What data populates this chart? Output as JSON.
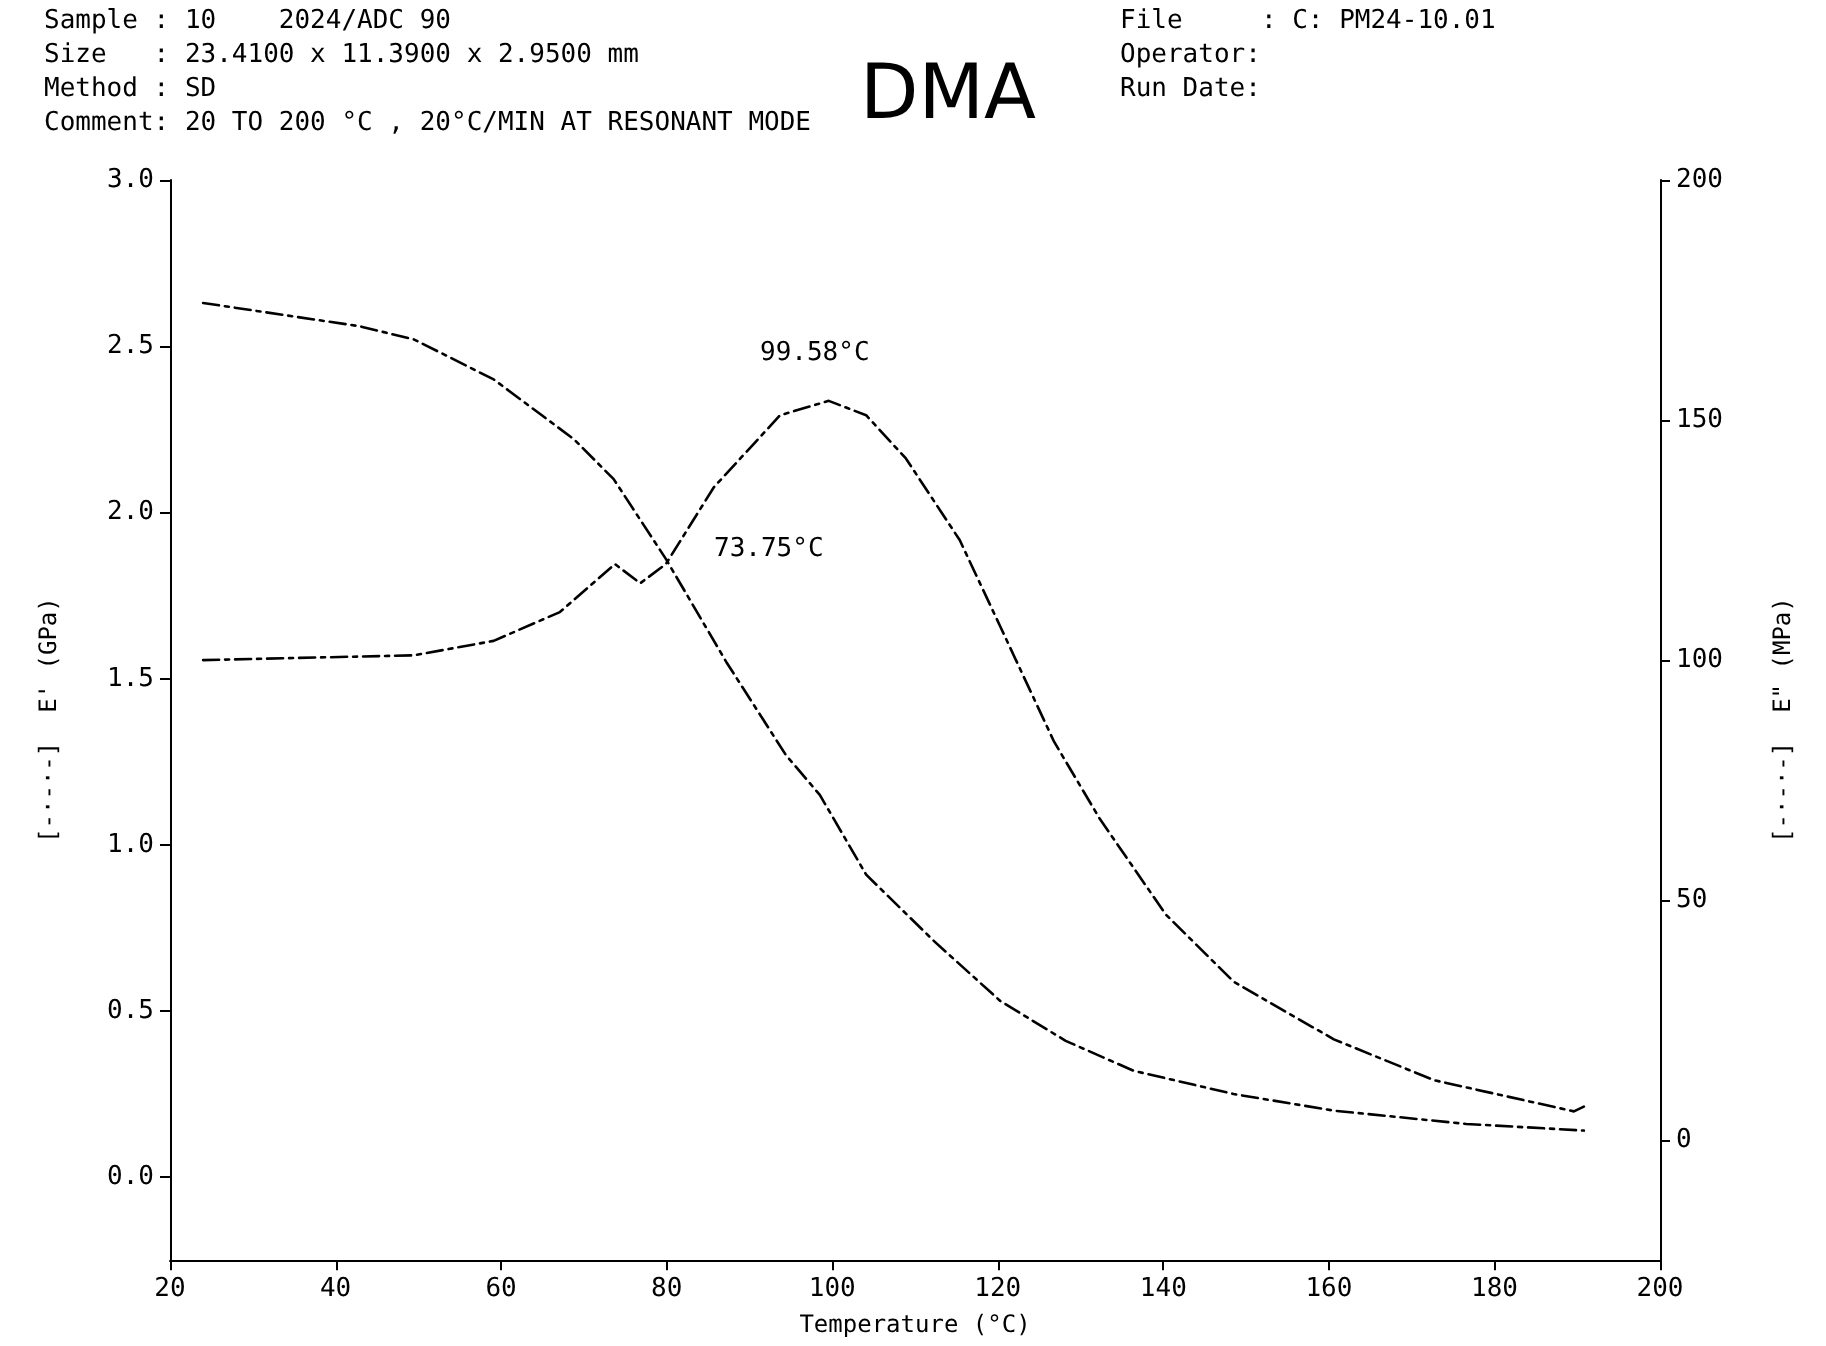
{
  "chart_data": {
    "type": "line",
    "title": "DMA",
    "annotations": [
      "Sample : 10    2024/ADC 90",
      "Size   : 23.4100 x 11.3900 x 2.9500 mm",
      "Method : SD",
      "Comment: 20 TO 200 °C , 20°C/MIN AT RESONANT MODE",
      "File     : C: PM24-10.01",
      "Operator:",
      "Run Date:",
      "99.58°C",
      "73.75°C"
    ],
    "xlabel": "Temperature (°C)",
    "ylabel": "[-·-·-]  E' (GPa)",
    "y2label": "[-·-·-]  E\" (MPa)",
    "series": [
      {
        "color": "#000000",
        "x": [
          24,
          42.9,
          49.5,
          59.1,
          68.8,
          73.6,
          79.9,
          87.2,
          94.4,
          98.5,
          104.1,
          112.3,
          120.3,
          128.2,
          136.4,
          148.5,
          160.6,
          176.6,
          190.8
        ],
        "values": [
          2.63,
          2.56,
          2.52,
          2.4,
          2.22,
          2.1,
          1.86,
          1.55,
          1.27,
          1.15,
          0.91,
          0.71,
          0.53,
          0.41,
          0.32,
          0.25,
          0.2,
          0.16,
          0.14
        ]
      },
      {
        "color": "#000000",
        "axis": "y2",
        "x": [
          24,
          49.5,
          59.1,
          67.1,
          73.75,
          76.8,
          79.9,
          85.7,
          93.7,
          99.58,
          104.1,
          108.9,
          115.4,
          120.3,
          126.8,
          132.3,
          140.3,
          148.5,
          160.6,
          172.7,
          189.6,
          190.8
        ],
        "values": [
          100,
          101,
          104,
          110,
          120,
          116,
          120,
          136,
          151,
          154,
          151,
          142,
          125,
          107,
          83,
          67,
          47,
          33,
          21,
          12.5,
          6,
          7
        ]
      }
    ],
    "xlim": [
      20,
      200
    ],
    "xticks": [
      20,
      40,
      60,
      80,
      100,
      120,
      140,
      160,
      180,
      200
    ],
    "ylim": [
      -0.25,
      3.0
    ],
    "yticks": [
      {
        "value": 0,
        "label": "0.0"
      },
      0.5,
      {
        "value": 1,
        "label": "1.0"
      },
      1.5,
      {
        "value": 2,
        "label": "2.0"
      },
      2.5,
      {
        "value": 3,
        "label": "3.0"
      }
    ],
    "y2lim": [
      -25,
      200
    ],
    "y2ticks": [
      0,
      50,
      100,
      150,
      200
    ],
    "grid": false,
    "marker": "none",
    "line_style": "dashed"
  }
}
